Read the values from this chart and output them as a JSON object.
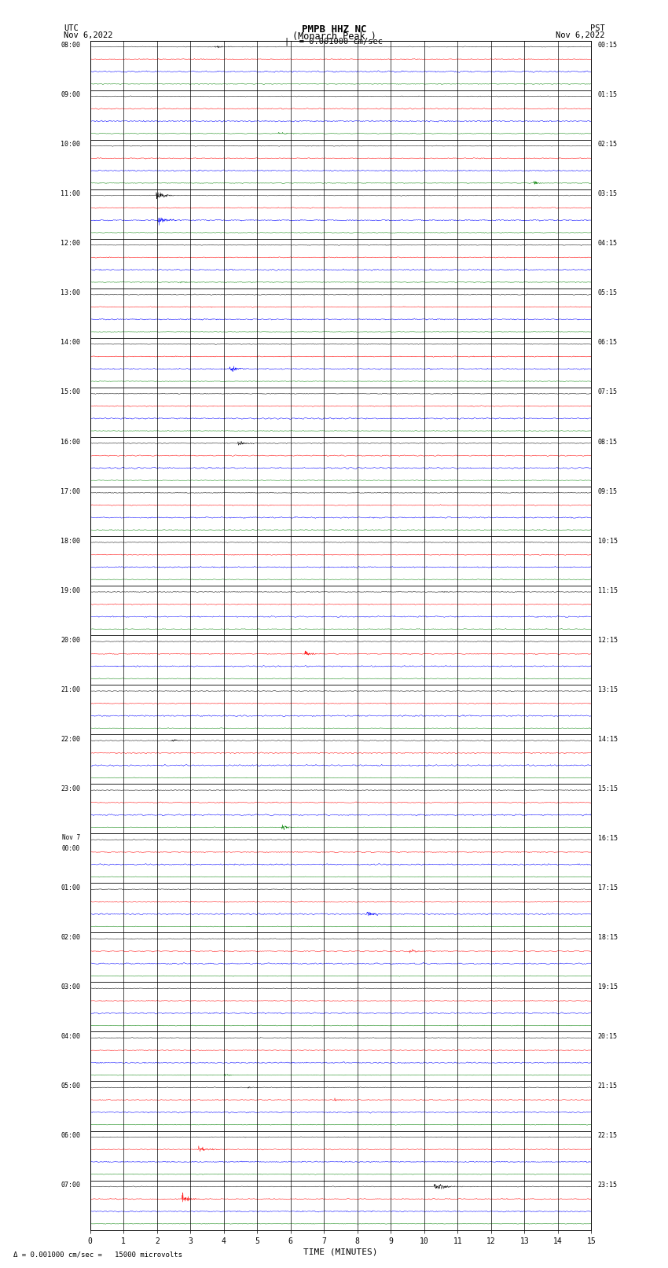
{
  "title_line1": "PMPB HHZ NC",
  "title_line2": "(Monarch Peak )",
  "scale_text": "= 0.001000 cm/sec",
  "bottom_text": "= 0.001000 cm/sec =   15000 microvolts",
  "utc_label": "UTC",
  "utc_date": "Nov 6,2022",
  "pst_label": "PST",
  "pst_date": "Nov 6,2022",
  "left_times": [
    "08:00",
    "09:00",
    "10:00",
    "11:00",
    "12:00",
    "13:00",
    "14:00",
    "15:00",
    "16:00",
    "17:00",
    "18:00",
    "19:00",
    "20:00",
    "21:00",
    "22:00",
    "23:00",
    "Nov 7\n00:00",
    "01:00",
    "02:00",
    "03:00",
    "04:00",
    "05:00",
    "06:00",
    "07:00"
  ],
  "right_times": [
    "00:15",
    "01:15",
    "02:15",
    "03:15",
    "04:15",
    "05:15",
    "06:15",
    "07:15",
    "08:15",
    "09:15",
    "10:15",
    "11:15",
    "12:15",
    "13:15",
    "14:15",
    "15:15",
    "16:15",
    "17:15",
    "18:15",
    "19:15",
    "20:15",
    "21:15",
    "22:15",
    "23:15"
  ],
  "n_rows": 24,
  "traces_per_row": 4,
  "colors": [
    "black",
    "red",
    "blue",
    "green"
  ],
  "xlabel": "TIME (MINUTES)",
  "xmin": 0,
  "xmax": 15,
  "xticks": [
    0,
    1,
    2,
    3,
    4,
    5,
    6,
    7,
    8,
    9,
    10,
    11,
    12,
    13,
    14,
    15
  ],
  "bg_color": "white",
  "noise_amplitude": [
    0.06,
    0.07,
    0.1,
    0.05
  ],
  "seed": 42
}
